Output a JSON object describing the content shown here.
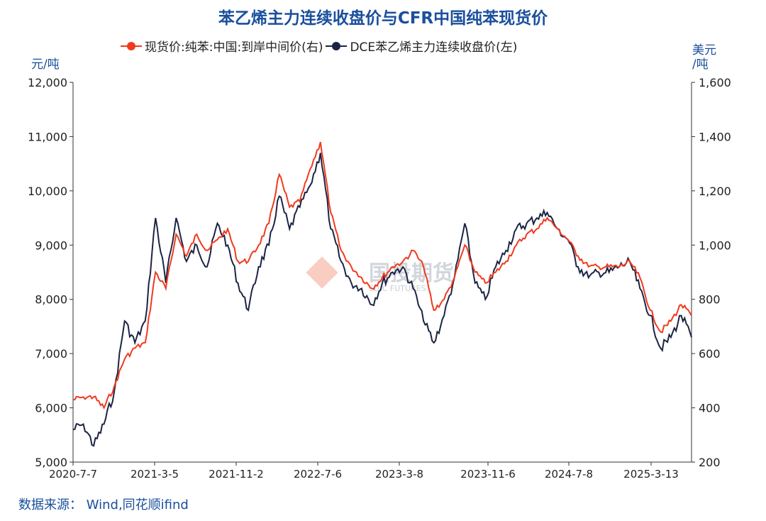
{
  "chart_data": {
    "type": "line",
    "title": "苯乙烯主力连续收盘价与CFR中国纯苯现货价",
    "left_unit": "元/吨",
    "right_unit_1": "美元",
    "right_unit_2": "/吨",
    "source": "数据来源： Wind,同花顺ifind",
    "watermark": "国投期货 SDIC FUTURES",
    "x_ticks": [
      "2020-7-7",
      "2021-3-5",
      "2021-11-2",
      "2022-7-6",
      "2023-3-8",
      "2023-11-6",
      "2024-7-8",
      "2025-3-13"
    ],
    "ylim_left": [
      5000,
      12000
    ],
    "ylim_right": [
      200,
      1600
    ],
    "y_ticks_left": [
      "5,000",
      "6,000",
      "7,000",
      "8,000",
      "9,000",
      "10,000",
      "11,000",
      "12,000"
    ],
    "y_ticks_right": [
      "200",
      "400",
      "600",
      "800",
      "1,000",
      "1,200",
      "1,400",
      "1,600"
    ],
    "x_months": [
      "2020-07",
      "2020-08",
      "2020-09",
      "2020-10",
      "2020-11",
      "2020-12",
      "2021-01",
      "2021-02",
      "2021-03",
      "2021-04",
      "2021-05",
      "2021-06",
      "2021-07",
      "2021-08",
      "2021-09",
      "2021-10",
      "2021-11",
      "2021-12",
      "2022-01",
      "2022-02",
      "2022-03",
      "2022-04",
      "2022-05",
      "2022-06",
      "2022-07",
      "2022-08",
      "2022-09",
      "2022-10",
      "2022-11",
      "2022-12",
      "2023-01",
      "2023-02",
      "2023-03",
      "2023-04",
      "2023-05",
      "2023-06",
      "2023-07",
      "2023-08",
      "2023-09",
      "2023-10",
      "2023-11",
      "2023-12",
      "2024-01",
      "2024-02",
      "2024-03",
      "2024-04",
      "2024-05",
      "2024-06",
      "2024-07",
      "2024-08",
      "2024-09",
      "2024-10",
      "2024-11",
      "2024-12",
      "2025-01",
      "2025-02",
      "2025-03",
      "2025-04",
      "2025-05",
      "2025-06",
      "2025-07"
    ],
    "series": [
      {
        "name": "现货价:纯苯:中国:到岸中间价(右)",
        "axis": "right",
        "color": "#f03a1e",
        "values": [
          430,
          440,
          440,
          400,
          480,
          580,
          620,
          640,
          900,
          840,
          1040,
          960,
          1040,
          980,
          1020,
          1060,
          940,
          940,
          1000,
          1080,
          1260,
          1140,
          1160,
          1280,
          1380,
          1120,
          980,
          920,
          880,
          840,
          880,
          920,
          940,
          980,
          920,
          760,
          800,
          880,
          1000,
          900,
          860,
          900,
          940,
          1000,
          1040,
          1060,
          1100,
          1060,
          1020,
          960,
          920,
          920,
          920,
          920,
          940,
          880,
          760,
          680,
          720,
          780,
          740
        ]
      },
      {
        "name": "DCE苯乙烯主力连续收盘价(左)",
        "axis": "left",
        "color": "#1c2444",
        "values": [
          5600,
          5700,
          5300,
          5700,
          6300,
          7600,
          7200,
          7600,
          9500,
          8300,
          9500,
          8700,
          9000,
          8600,
          9400,
          9000,
          8300,
          7800,
          8600,
          9000,
          9900,
          9300,
          9700,
          10100,
          10700,
          9300,
          8700,
          8300,
          8200,
          7900,
          8300,
          8500,
          8600,
          8200,
          7600,
          7200,
          7700,
          8400,
          9400,
          8300,
          8000,
          8600,
          8900,
          9300,
          9400,
          9500,
          9600,
          9300,
          9100,
          8600,
          8400,
          8500,
          8500,
          8600,
          8700,
          8200,
          7700,
          7100,
          7300,
          7700,
          7300
        ]
      }
    ]
  }
}
